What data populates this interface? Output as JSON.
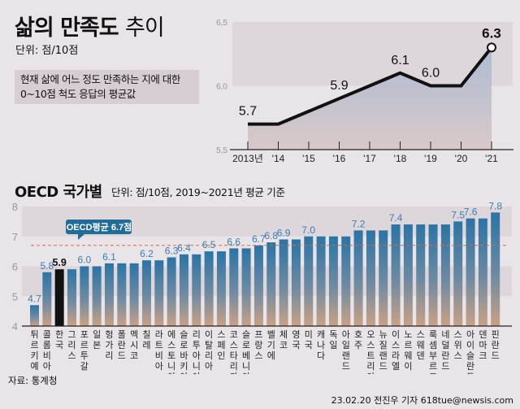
{
  "line_section": {
    "title_bold": "삶의 만족도",
    "title_light": "추이",
    "unit": "단위: 점/10점",
    "note_line1": "현재 삶에 어느 정도 만족하는 지에 대한",
    "note_line2": "0~10점 척도 응답의 평균값"
  },
  "bar_section": {
    "title": "OECD 국가별",
    "unit": "단위: 점/10점, 2019~2021년 평균 기준",
    "average_label": "OECD평균 6.7점"
  },
  "footer": {
    "source": "자료: 통계청",
    "credit": "23.02.20 전진우 기자 618tue@newsis.com"
  },
  "colors": {
    "bar_top": "#2a74a6",
    "bar_bottom": "#caa184",
    "korea_bar": "#111111",
    "value_label": "#3a7fb0",
    "average_line": "#d0704a",
    "line": "#111111"
  },
  "chart_data": [
    {
      "type": "line",
      "categories": [
        "2013년",
        "'14",
        "'15",
        "'16",
        "'17",
        "'18",
        "'19",
        "'20",
        "'21"
      ],
      "values": [
        5.7,
        5.7,
        5.8,
        5.9,
        6.0,
        6.1,
        6.0,
        6.0,
        6.3
      ],
      "data_labels": [
        "5.7",
        "",
        "",
        "5.9",
        "",
        "6.1",
        "6.0",
        "",
        "6.3"
      ],
      "ylim": [
        5.5,
        6.5
      ],
      "yticks": [
        "5,5",
        "6,0",
        "6,5"
      ],
      "ytick_values": [
        5.5,
        6.0,
        6.5
      ],
      "area_fill": true,
      "highlight_last": true
    },
    {
      "type": "bar",
      "categories": [
        "튀르키예",
        "콜롬비아",
        "한국",
        "그리스",
        "포르투갈",
        "일본",
        "헝가리",
        "폴란드",
        "멕시코",
        "칠레",
        "라트비아",
        "에스토니아",
        "슬로바키아",
        "리투아니아",
        "이탈리아",
        "스페인",
        "코스타리카",
        "슬로베니아",
        "프랑스",
        "벨기에",
        "체코",
        "영국",
        "미국",
        "캐나다",
        "독일",
        "아일랜드",
        "호주",
        "오스트리아",
        "뉴질랜드",
        "이스라엘",
        "노르웨이",
        "스웨덴",
        "룩셈부르크",
        "네덜란드",
        "스위스",
        "아이슬란드",
        "덴마크",
        "핀란드"
      ],
      "values": [
        4.7,
        5.8,
        5.9,
        5.9,
        6.0,
        6.0,
        6.1,
        6.1,
        6.1,
        6.2,
        6.2,
        6.3,
        6.4,
        6.4,
        6.5,
        6.5,
        6.6,
        6.6,
        6.7,
        6.8,
        6.9,
        6.9,
        7.0,
        7.0,
        7.0,
        7.0,
        7.2,
        7.2,
        7.2,
        7.4,
        7.4,
        7.4,
        7.4,
        7.4,
        7.5,
        7.6,
        7.6,
        7.8
      ],
      "data_labels": [
        "4.7",
        "5.8",
        "5.9",
        "",
        "6.0",
        "",
        "6.1",
        "",
        "",
        "6.2",
        "",
        "6.3",
        "6.4",
        "",
        "6.5",
        "",
        "6.6",
        "",
        "6.7",
        "6.8",
        "6.9",
        "",
        "7.0",
        "",
        "",
        "",
        "7.2",
        "",
        "",
        "7.4",
        "",
        "",
        "",
        "",
        "7.5",
        "7.6",
        "",
        "7.8"
      ],
      "highlight": "한국",
      "average": 6.7,
      "ylim": [
        4,
        8
      ],
      "yticks": [
        "4",
        "5",
        "6",
        "7",
        "8"
      ],
      "ytick_values": [
        4,
        5,
        6,
        7,
        8
      ]
    }
  ]
}
